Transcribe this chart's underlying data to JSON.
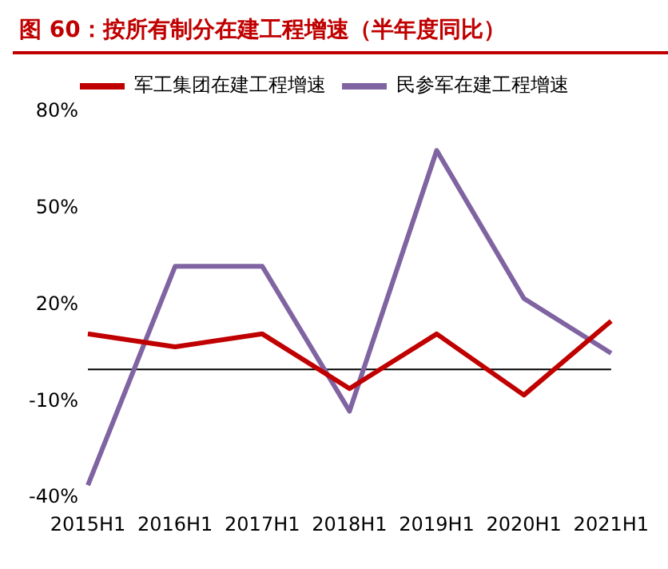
{
  "chart_data": {
    "type": "line",
    "title": "图 60：按所有制分在建工程增速（半年度同比）",
    "categories": [
      "2015H1",
      "2016H1",
      "2017H1",
      "2018H1",
      "2019H1",
      "2020H1",
      "2021H1"
    ],
    "series": [
      {
        "name": "军工集团在建工程增速",
        "color": "#c00000",
        "values": [
          11,
          7,
          11,
          -6,
          11,
          -8,
          15
        ]
      },
      {
        "name": "民参军在建工程增速",
        "color": "#8064a2",
        "values": [
          -36,
          32,
          32,
          -13,
          68,
          22,
          5
        ]
      }
    ],
    "ylim": [
      -40,
      80
    ],
    "yticks": [
      {
        "value": -40,
        "label": "-40%"
      },
      {
        "value": -10,
        "label": "-10%"
      },
      {
        "value": 20,
        "label": "20%"
      },
      {
        "value": 50,
        "label": "50%"
      },
      {
        "value": 80,
        "label": "80%"
      }
    ],
    "grid": false,
    "legend": "top",
    "marker": "none",
    "line_style": "solid"
  }
}
